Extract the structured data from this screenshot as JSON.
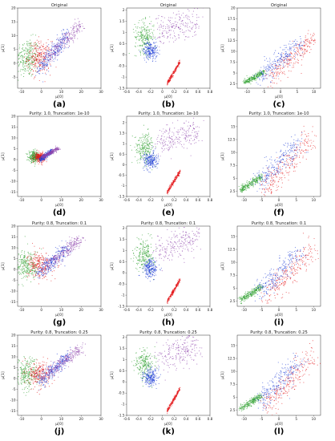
{
  "figure": {
    "panels": [
      "(a)",
      "(b)",
      "(c)",
      "(d)",
      "(e)",
      "(f)",
      "(g)",
      "(h)",
      "(i)",
      "(j)",
      "(k)",
      "(l)"
    ]
  },
  "colors": {
    "green": "#2ca02c",
    "red": "#e41a1c",
    "blue": "#1f3fd6",
    "purple": "#8e44ad"
  },
  "chart_data": [
    {
      "type": "scatter",
      "label": "(a)",
      "title": "Original",
      "xlabel": "μ[0]",
      "ylabel": "μ[1]",
      "xlim": [
        -12,
        30
      ],
      "ylim": [
        -9,
        20
      ],
      "xticks": [
        -10,
        0,
        10,
        20,
        30
      ],
      "yticks": [
        -5,
        0,
        5,
        10,
        15,
        20
      ],
      "series": [
        {
          "color": "green"
        },
        {
          "color": "red"
        },
        {
          "color": "blue"
        },
        {
          "color": "purple"
        }
      ]
    },
    {
      "type": "scatter",
      "label": "(b)",
      "title": "Original",
      "xlabel": "μ[0]",
      "ylabel": "μ[1]",
      "xlim": [
        -0.6,
        0.8
      ],
      "ylim": [
        -1.5,
        2.1
      ],
      "xticks": [
        -0.6,
        -0.4,
        -0.2,
        0.0,
        0.2,
        0.4,
        0.6,
        0.8
      ],
      "yticks": [
        -1.5,
        -1.0,
        -0.5,
        0.0,
        0.5,
        1.0,
        1.5,
        2.0
      ],
      "series": [
        {
          "color": "green"
        },
        {
          "color": "red"
        },
        {
          "color": "blue"
        },
        {
          "color": "purple"
        }
      ]
    },
    {
      "type": "scatter",
      "label": "(c)",
      "title": "Original",
      "xlabel": "μ[0]",
      "ylabel": "μ[1]",
      "xlim": [
        -13,
        12
      ],
      "ylim": [
        1.5,
        20
      ],
      "xticks": [
        -10,
        -5,
        0,
        5,
        10
      ],
      "yticks": [
        2.5,
        5.0,
        7.5,
        10.0,
        12.5,
        15.0,
        17.5,
        20.0
      ],
      "series": [
        {
          "color": "green"
        },
        {
          "color": "red"
        },
        {
          "color": "blue"
        }
      ]
    },
    {
      "type": "scatter",
      "label": "(d)",
      "title": "Purity: 1.0,  Truncation: 1e-10",
      "xlabel": "μ[0]",
      "ylabel": "μ[1]",
      "xlim": [
        -12,
        30
      ],
      "ylim": [
        -17,
        20
      ],
      "xticks": [
        -10,
        0,
        10,
        20,
        30
      ],
      "yticks": [
        -15,
        -10,
        -5,
        0,
        5,
        10,
        15,
        20
      ],
      "series": [
        {
          "color": "green"
        },
        {
          "color": "red"
        },
        {
          "color": "blue"
        },
        {
          "color": "purple"
        }
      ]
    },
    {
      "type": "scatter",
      "label": "(e)",
      "title": "Purity: 1.0,  Truncation: 1e-10",
      "xlabel": "μ[0]",
      "ylabel": "μ[1]",
      "xlim": [
        -0.6,
        0.8
      ],
      "ylim": [
        -1.5,
        2.3
      ],
      "xticks": [
        -0.6,
        -0.4,
        -0.2,
        0.0,
        0.2,
        0.4,
        0.6,
        0.8
      ],
      "yticks": [
        -1.5,
        -1.0,
        -0.5,
        0.0,
        0.5,
        1.0,
        1.5,
        2.0
      ],
      "series": [
        {
          "color": "green"
        },
        {
          "color": "red"
        },
        {
          "color": "blue"
        },
        {
          "color": "purple"
        }
      ]
    },
    {
      "type": "scatter",
      "label": "(f)",
      "title": "Purity: 1.0,  Truncation: 1e-10",
      "xlabel": "μ[0]",
      "ylabel": "μ[1]",
      "xlim": [
        -12,
        12
      ],
      "ylim": [
        1.5,
        17
      ],
      "xticks": [
        -10,
        -5,
        0,
        5,
        10
      ],
      "yticks": [
        2.5,
        5.0,
        7.5,
        10.0,
        12.5,
        15.0
      ],
      "series": [
        {
          "color": "green"
        },
        {
          "color": "red"
        },
        {
          "color": "blue"
        }
      ]
    },
    {
      "type": "scatter",
      "label": "(g)",
      "title": "Purity: 0.8,  Truncation: 0.1",
      "xlabel": "μ[0]",
      "ylabel": "μ[1]",
      "xlim": [
        -12,
        30
      ],
      "ylim": [
        -17,
        20
      ],
      "xticks": [
        -10,
        0,
        10,
        20,
        30
      ],
      "yticks": [
        -15,
        -10,
        -5,
        0,
        5,
        10,
        15,
        20
      ],
      "series": [
        {
          "color": "green"
        },
        {
          "color": "red"
        },
        {
          "color": "blue"
        },
        {
          "color": "purple"
        }
      ]
    },
    {
      "type": "scatter",
      "label": "(h)",
      "title": "Purity: 0.8,  Truncation: 0.1",
      "xlabel": "μ[0]",
      "ylabel": "μ[1]",
      "xlim": [
        -0.6,
        0.8
      ],
      "ylim": [
        -1.5,
        2.1
      ],
      "xticks": [
        -0.6,
        -0.4,
        -0.2,
        0.0,
        0.2,
        0.4,
        0.6,
        0.8
      ],
      "yticks": [
        -1.5,
        -1.0,
        -0.5,
        0.0,
        0.5,
        1.0,
        1.5,
        2.0
      ],
      "series": [
        {
          "color": "green"
        },
        {
          "color": "red"
        },
        {
          "color": "blue"
        },
        {
          "color": "purple"
        }
      ]
    },
    {
      "type": "scatter",
      "label": "(i)",
      "title": "Purity: 0.8,  Truncation: 0.1",
      "xlabel": "μ[0]",
      "ylabel": "μ[1]",
      "xlim": [
        -12,
        12
      ],
      "ylim": [
        1.5,
        17
      ],
      "xticks": [
        -10,
        -5,
        0,
        5,
        10
      ],
      "yticks": [
        2.5,
        5.0,
        7.5,
        10.0,
        12.5,
        15.0
      ],
      "series": [
        {
          "color": "green"
        },
        {
          "color": "red"
        },
        {
          "color": "blue"
        }
      ]
    },
    {
      "type": "scatter",
      "label": "(j)",
      "title": "Purity: 0.8,  Truncation: 0.25",
      "xlabel": "μ[0]",
      "ylabel": "μ[1]",
      "xlim": [
        -12,
        30
      ],
      "ylim": [
        -17,
        20
      ],
      "xticks": [
        -10,
        0,
        10,
        20,
        30
      ],
      "yticks": [
        -15,
        -10,
        -5,
        0,
        5,
        10,
        15,
        20
      ],
      "series": [
        {
          "color": "green"
        },
        {
          "color": "red"
        },
        {
          "color": "blue"
        },
        {
          "color": "purple"
        }
      ]
    },
    {
      "type": "scatter",
      "label": "(k)",
      "title": "Purity: 0.8,  Truncation: 0.25",
      "xlabel": "μ[0]",
      "ylabel": "μ[1]",
      "xlim": [
        -0.6,
        0.8
      ],
      "ylim": [
        -1.5,
        2.1
      ],
      "xticks": [
        -0.6,
        -0.4,
        -0.2,
        0.0,
        0.2,
        0.4,
        0.6,
        0.8
      ],
      "yticks": [
        -1.5,
        -1.0,
        -0.5,
        0.0,
        0.5,
        1.0,
        1.5,
        2.0
      ],
      "series": [
        {
          "color": "green"
        },
        {
          "color": "red"
        },
        {
          "color": "blue"
        },
        {
          "color": "purple"
        }
      ]
    },
    {
      "type": "scatter",
      "label": "(l)",
      "title": "Purity: 0.8,  Truncation: 0.25",
      "xlabel": "μ[0]",
      "ylabel": "μ[1]",
      "xlim": [
        -12,
        12
      ],
      "ylim": [
        1.5,
        17
      ],
      "xticks": [
        -10,
        -5,
        0,
        5,
        10
      ],
      "yticks": [
        2.5,
        5.0,
        7.5,
        10.0,
        12.5,
        15.0
      ],
      "series": [
        {
          "color": "green"
        },
        {
          "color": "red"
        },
        {
          "color": "blue"
        }
      ]
    }
  ]
}
